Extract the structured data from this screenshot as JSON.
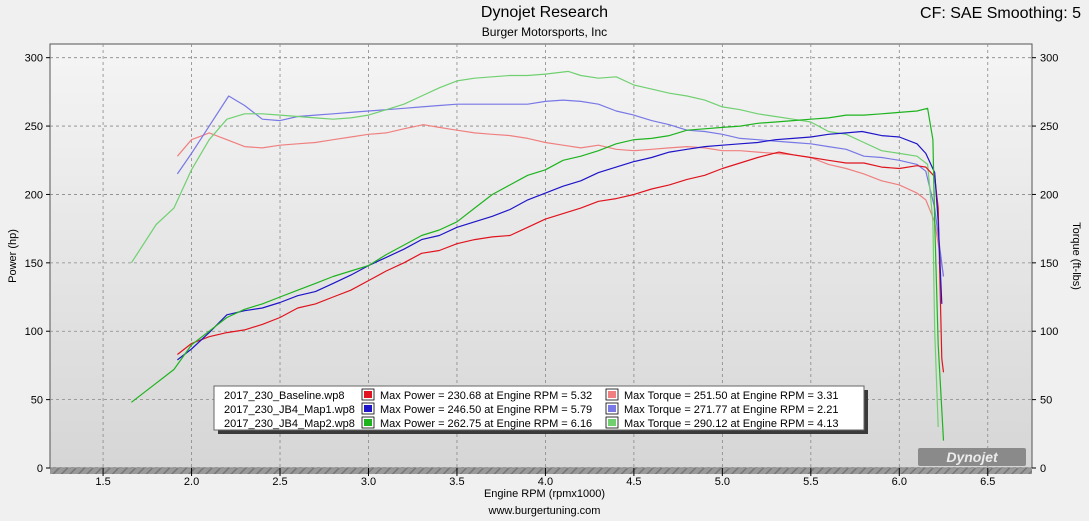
{
  "header": {
    "title": "Dynojet Research",
    "subtitle": "Burger Motorsports, Inc",
    "cf_info": "CF: SAE Smoothing: 5"
  },
  "footer": {
    "url": "www.burgertuning.com"
  },
  "logo": {
    "text": "Dynojet"
  },
  "chart_data": {
    "type": "line",
    "xlabel": "Engine RPM (rpmx1000)",
    "ylabel_left": "Power (hp)",
    "ylabel_right": "Torque (ft-lbs)",
    "xlim": [
      1.2,
      6.75
    ],
    "ylim": [
      0,
      310
    ],
    "x_ticks": [
      "1.5",
      "2.0",
      "2.5",
      "3.0",
      "3.5",
      "4.0",
      "4.5",
      "5.0",
      "5.5",
      "6.0",
      "6.5"
    ],
    "y_ticks": [
      "0",
      "50",
      "100",
      "150",
      "200",
      "250",
      "300"
    ],
    "grid": true,
    "legend_position": "bottom-center",
    "legend": [
      {
        "run": "2017_230_Baseline.wp8",
        "power_text": "Max Power = 230.68 at Engine RPM = 5.32",
        "torque_text": "Max Torque = 251.50 at Engine RPM = 3.31",
        "power_color": "#e0141e",
        "torque_color": "#f08080"
      },
      {
        "run": "2017_230_JB4_Map1.wp8",
        "power_text": "Max Power = 246.50 at Engine RPM = 5.79",
        "torque_text": "Max Torque = 271.77 at Engine RPM = 2.21",
        "power_color": "#1e14c8",
        "torque_color": "#7878e6"
      },
      {
        "run": "2017_230_JB4_Map2.wp8",
        "power_text": "Max Power = 262.75 at Engine RPM = 6.16",
        "torque_text": "Max Torque = 290.12 at Engine RPM = 4.13",
        "power_color": "#1eb41e",
        "torque_color": "#70d070"
      }
    ],
    "series": [
      {
        "name": "2017_230_Baseline.wp8",
        "kind": "power",
        "color": "#e0141e",
        "x": [
          1.92,
          2.0,
          2.1,
          2.2,
          2.3,
          2.4,
          2.5,
          2.6,
          2.7,
          2.8,
          2.9,
          3.0,
          3.1,
          3.2,
          3.3,
          3.4,
          3.5,
          3.6,
          3.7,
          3.8,
          3.9,
          4.0,
          4.1,
          4.2,
          4.3,
          4.4,
          4.5,
          4.6,
          4.7,
          4.8,
          4.9,
          5.0,
          5.1,
          5.2,
          5.32,
          5.4,
          5.5,
          5.6,
          5.7,
          5.8,
          5.9,
          6.0,
          6.1,
          6.15,
          6.2,
          6.22,
          6.24,
          6.25
        ],
        "y": [
          83,
          91,
          96,
          99,
          101,
          105,
          110,
          117,
          120,
          125,
          130,
          137,
          144,
          150,
          157,
          159,
          164,
          167,
          169,
          170,
          176,
          182,
          186,
          190,
          195,
          197,
          200,
          204,
          207,
          211,
          214,
          219,
          223,
          227,
          231,
          229,
          227,
          225,
          223,
          223,
          220,
          219,
          221,
          220,
          213,
          190,
          80,
          70
        ]
      },
      {
        "name": "2017_230_JB4_Map1.wp8",
        "kind": "power",
        "color": "#1e14c8",
        "x": [
          1.92,
          2.0,
          2.1,
          2.2,
          2.3,
          2.4,
          2.5,
          2.6,
          2.7,
          2.8,
          2.9,
          3.0,
          3.1,
          3.2,
          3.3,
          3.4,
          3.5,
          3.6,
          3.7,
          3.8,
          3.9,
          4.0,
          4.1,
          4.2,
          4.3,
          4.4,
          4.5,
          4.6,
          4.7,
          4.8,
          4.9,
          5.0,
          5.1,
          5.2,
          5.3,
          5.4,
          5.5,
          5.6,
          5.7,
          5.79,
          5.9,
          6.0,
          6.1,
          6.15,
          6.2,
          6.22,
          6.24
        ],
        "y": [
          79,
          87,
          99,
          112,
          115,
          117,
          121,
          126,
          129,
          135,
          141,
          148,
          154,
          160,
          167,
          170,
          176,
          180,
          184,
          189,
          196,
          201,
          206,
          210,
          216,
          220,
          224,
          227,
          231,
          233,
          235,
          236,
          237,
          238,
          240,
          241,
          242,
          244,
          245,
          246,
          243,
          242,
          237,
          230,
          216,
          180,
          120
        ]
      },
      {
        "name": "2017_230_JB4_Map2.wp8",
        "kind": "power",
        "color": "#1eb41e",
        "x": [
          1.66,
          1.8,
          1.9,
          2.0,
          2.1,
          2.2,
          2.3,
          2.4,
          2.5,
          2.6,
          2.7,
          2.8,
          2.9,
          3.0,
          3.1,
          3.2,
          3.3,
          3.4,
          3.5,
          3.6,
          3.7,
          3.8,
          3.9,
          4.0,
          4.1,
          4.2,
          4.3,
          4.4,
          4.5,
          4.6,
          4.7,
          4.8,
          4.9,
          5.0,
          5.1,
          5.2,
          5.3,
          5.4,
          5.5,
          5.6,
          5.7,
          5.8,
          5.9,
          6.0,
          6.1,
          6.16,
          6.19,
          6.2,
          6.22,
          6.25
        ],
        "y": [
          48,
          62,
          72,
          90,
          100,
          110,
          116,
          120,
          125,
          130,
          135,
          140,
          144,
          148,
          156,
          163,
          170,
          174,
          180,
          190,
          200,
          207,
          214,
          218,
          225,
          228,
          232,
          237,
          240,
          241,
          243,
          247,
          248,
          249,
          250,
          252,
          253,
          254,
          255,
          256,
          258,
          258,
          259,
          260,
          261,
          263,
          240,
          180,
          90,
          20
        ]
      },
      {
        "name": "2017_230_Baseline.wp8",
        "kind": "torque",
        "color": "#f08080",
        "x": [
          1.92,
          2.0,
          2.1,
          2.2,
          2.3,
          2.4,
          2.5,
          2.6,
          2.7,
          2.8,
          2.9,
          3.0,
          3.1,
          3.2,
          3.31,
          3.4,
          3.5,
          3.6,
          3.7,
          3.8,
          3.9,
          4.0,
          4.1,
          4.2,
          4.3,
          4.4,
          4.5,
          4.6,
          4.7,
          4.8,
          4.9,
          5.0,
          5.1,
          5.2,
          5.3,
          5.4,
          5.5,
          5.6,
          5.7,
          5.8,
          5.9,
          6.0,
          6.1,
          6.15,
          6.2,
          6.25
        ],
        "y": [
          228,
          240,
          245,
          240,
          235,
          234,
          236,
          237,
          238,
          240,
          242,
          244,
          245,
          248,
          251,
          249,
          247,
          245,
          244,
          243,
          241,
          238,
          236,
          234,
          236,
          233,
          232,
          233,
          234,
          235,
          234,
          232,
          232,
          231,
          230,
          229,
          227,
          222,
          219,
          215,
          210,
          207,
          201,
          196,
          180,
          140
        ]
      },
      {
        "name": "2017_230_JB4_Map1.wp8",
        "kind": "torque",
        "color": "#7878e6",
        "x": [
          1.92,
          2.0,
          2.1,
          2.21,
          2.3,
          2.4,
          2.5,
          2.6,
          2.7,
          2.8,
          2.9,
          3.0,
          3.1,
          3.2,
          3.3,
          3.4,
          3.5,
          3.6,
          3.7,
          3.8,
          3.9,
          4.0,
          4.1,
          4.2,
          4.3,
          4.4,
          4.5,
          4.6,
          4.7,
          4.8,
          4.9,
          5.0,
          5.1,
          5.2,
          5.3,
          5.4,
          5.5,
          5.6,
          5.7,
          5.8,
          5.9,
          6.0,
          6.1,
          6.15,
          6.2,
          6.25
        ],
        "y": [
          215,
          230,
          250,
          272,
          265,
          255,
          254,
          257,
          258,
          259,
          260,
          261,
          262,
          263,
          264,
          265,
          266,
          266,
          266,
          266,
          266,
          268,
          269,
          268,
          266,
          261,
          258,
          254,
          251,
          247,
          246,
          244,
          241,
          240,
          239,
          238,
          237,
          235,
          233,
          228,
          227,
          225,
          222,
          217,
          190,
          140
        ]
      },
      {
        "name": "2017_230_JB4_Map2.wp8",
        "kind": "torque",
        "color": "#70d070",
        "x": [
          1.66,
          1.8,
          1.9,
          2.0,
          2.1,
          2.2,
          2.3,
          2.4,
          2.5,
          2.6,
          2.7,
          2.8,
          2.9,
          3.0,
          3.1,
          3.2,
          3.3,
          3.4,
          3.5,
          3.6,
          3.7,
          3.8,
          3.9,
          4.0,
          4.13,
          4.2,
          4.3,
          4.4,
          4.5,
          4.6,
          4.7,
          4.8,
          4.9,
          5.0,
          5.1,
          5.2,
          5.3,
          5.4,
          5.5,
          5.6,
          5.7,
          5.8,
          5.9,
          6.0,
          6.1,
          6.16,
          6.19,
          6.2,
          6.22
        ],
        "y": [
          150,
          178,
          190,
          218,
          240,
          255,
          259,
          259,
          258,
          257,
          256,
          255,
          256,
          258,
          262,
          266,
          272,
          278,
          283,
          285,
          286,
          287,
          287,
          288,
          290,
          287,
          285,
          286,
          280,
          277,
          274,
          272,
          269,
          264,
          262,
          259,
          257,
          255,
          253,
          246,
          244,
          238,
          232,
          230,
          228,
          222,
          180,
          100,
          30
        ]
      }
    ]
  }
}
